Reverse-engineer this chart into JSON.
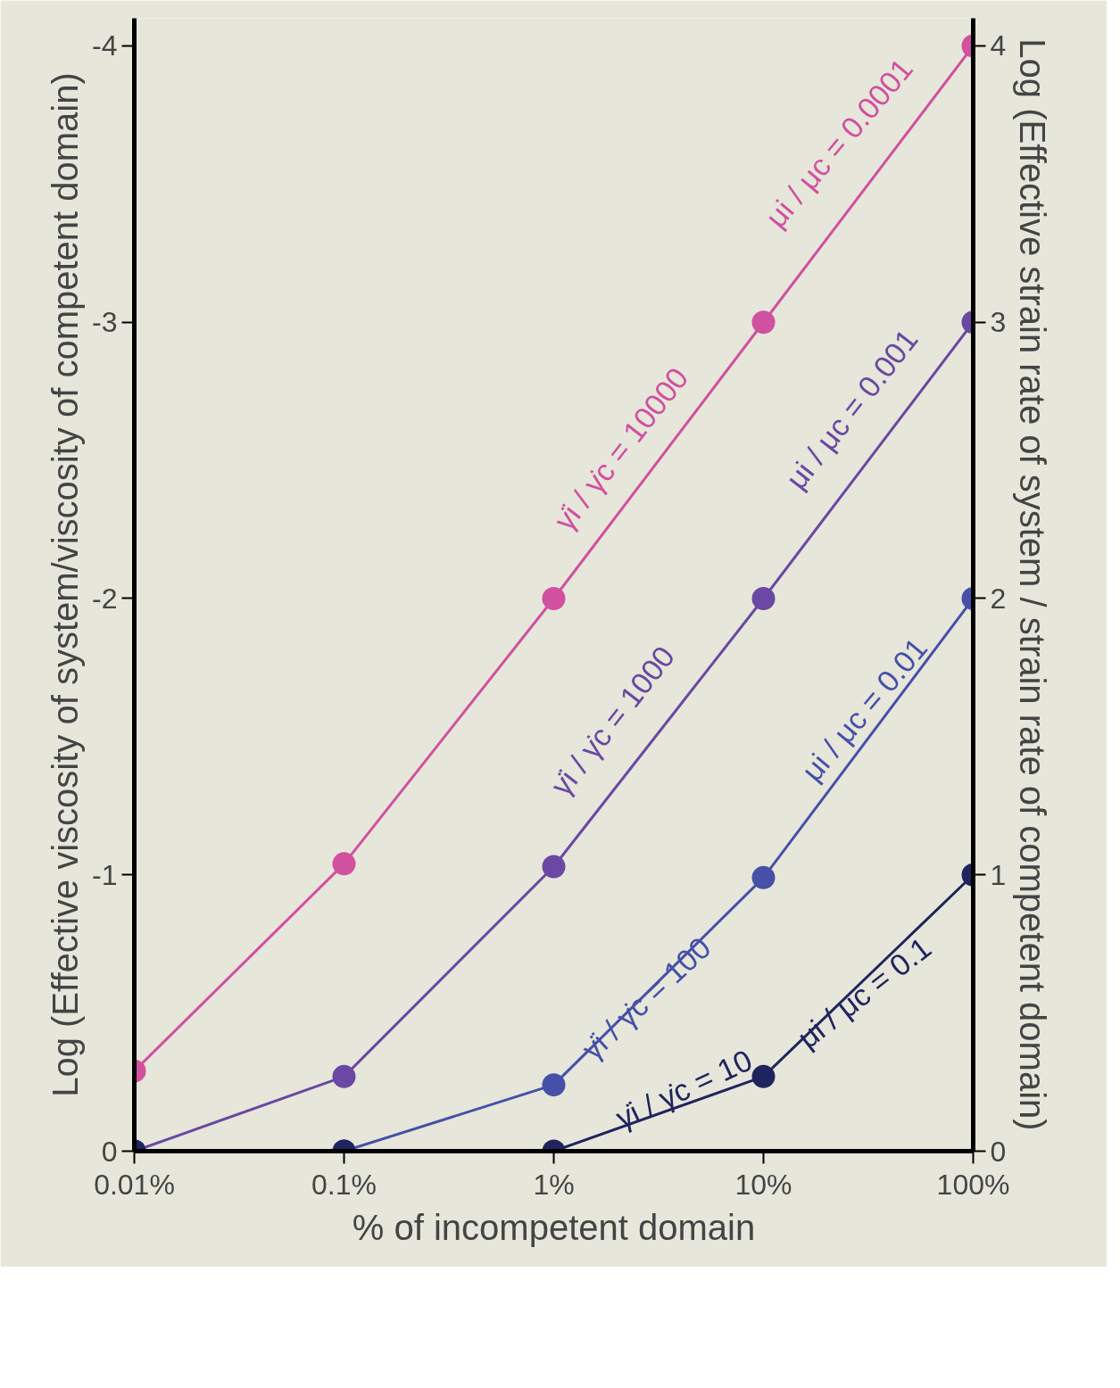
{
  "chart_data": {
    "type": "line",
    "xlabel": "% of incompetent domain",
    "ylabel": "Log (Effective viscosity of system/viscosity of competent domain)",
    "y2label": "Log (Effective strain rate of system / strain rate of competent domain)",
    "x": [
      0.01,
      0.1,
      1,
      10,
      100
    ],
    "log": "x",
    "marker": "circle",
    "xlim": [
      0.01,
      100
    ],
    "xticks": [
      {
        "value": 0.01,
        "label": "0.01%"
      },
      {
        "value": 0.1,
        "label": "0.1%"
      },
      {
        "value": 1,
        "label": "1%"
      },
      {
        "value": 10,
        "label": "10%"
      },
      {
        "value": 100,
        "label": "100%"
      }
    ],
    "ylim": [
      0,
      -4.1
    ],
    "yticks": [
      0,
      -1,
      -2,
      -3,
      -4
    ],
    "y2lim": [
      0,
      4.1
    ],
    "y2ticks": [
      0,
      1,
      2,
      3,
      4
    ],
    "series": [
      {
        "color": "#d150a0",
        "axis": "y2",
        "values": [
          0.29,
          1.04,
          2.0,
          3.0,
          4.0
        ]
      },
      {
        "color": "#6a48a3",
        "axis": "y2",
        "values": [
          0,
          0.27,
          1.03,
          2.0,
          3.0
        ]
      },
      {
        "color": "#4650a8",
        "axis": "y2",
        "values": [
          0,
          0,
          0.24,
          0.99,
          2.0
        ]
      },
      {
        "color": "#20245e",
        "axis": "y2",
        "values": [
          0,
          0,
          0,
          0.27,
          1.0
        ]
      }
    ],
    "annotations": [
      "γ̇i / γ̇c = 10000",
      "μi / μc = 0.0001",
      "γ̇i / γ̇c = 1000",
      "μi / μc = 0.001",
      "γ̇i / γ̇c = 100",
      "μi / μc = 0.01",
      "γ̇i / γ̇c = 10",
      "μi / μc = 0.1"
    ]
  }
}
